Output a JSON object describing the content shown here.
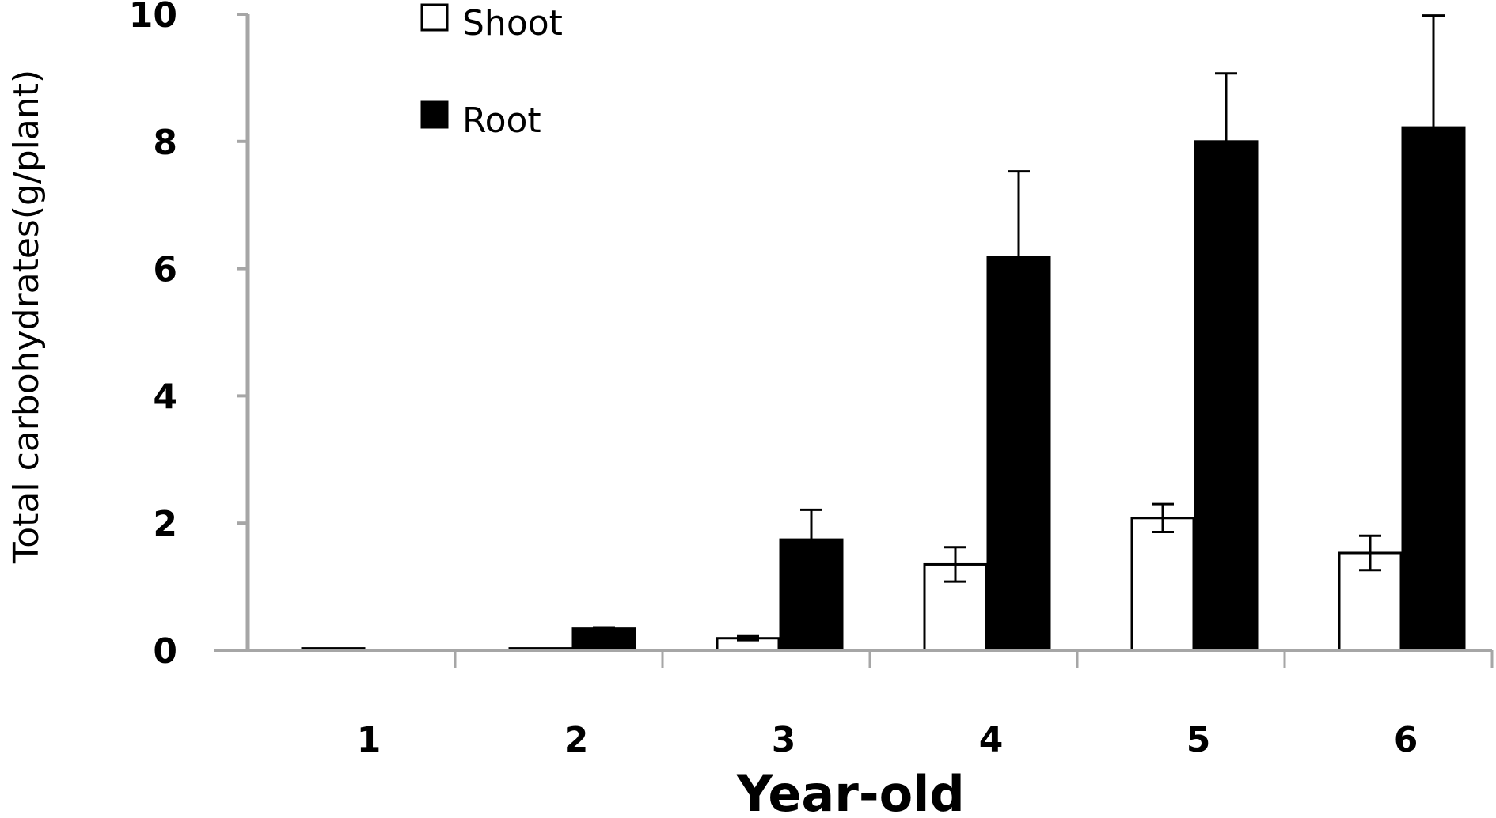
{
  "chart_data": {
    "type": "bar",
    "xlabel": "Year-old",
    "ylabel": "Total carbohydrates(g/plant)",
    "categories": [
      "1",
      "2",
      "3",
      "4",
      "5",
      "6"
    ],
    "ylim": [
      0,
      10
    ],
    "yticks": [
      "0",
      "2",
      "4",
      "6",
      "8",
      "10"
    ],
    "grid": false,
    "legend_position": "top-left",
    "error_bars": true,
    "series": [
      {
        "name": "Shoot",
        "fill": "#ffffff",
        "values": [
          0.03,
          0.03,
          0.19,
          1.35,
          2.08,
          1.53
        ],
        "errors": [
          0,
          0,
          0.03,
          0.27,
          0.22,
          0.27
        ]
      },
      {
        "name": "Root",
        "fill": "#000000",
        "values": [
          0,
          0.34,
          1.74,
          6.18,
          8.0,
          8.22
        ],
        "errors": [
          0,
          0.02,
          0.47,
          1.35,
          1.07,
          1.76
        ]
      }
    ]
  }
}
